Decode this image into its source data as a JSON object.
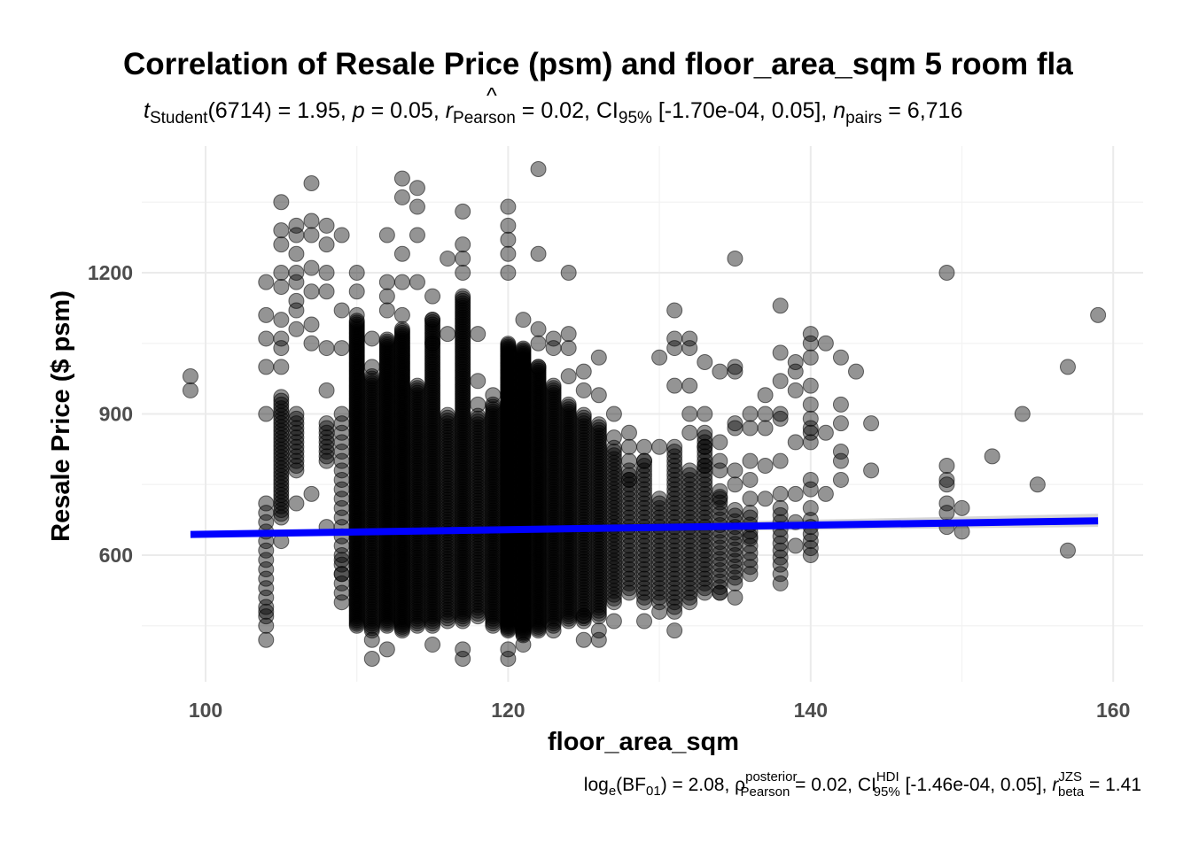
{
  "chart_data": {
    "type": "scatter",
    "title": "Correlation of Resale Price (psm) and floor_area_sqm 5 room fla",
    "subtitle": {
      "t_symbol": "t",
      "t_sub": "Student",
      "df": "(6714)",
      "t_value": " = 1.95, ",
      "p_symbol": "p",
      "p_value": " = 0.05, ",
      "r_symbol": "r",
      "r_hat": "^",
      "r_sub": "Pearson",
      "r_value": " = 0.02, CI",
      "ci_sub": "95%",
      "ci_value": " [-1.70e-04, 0.05], ",
      "n_symbol": "n",
      "n_sub": "pairs",
      "n_value": " = 6,716"
    },
    "caption": {
      "log": "log",
      "log_sub": "e",
      "bf": "(BF",
      "bf_sub": "01",
      "bf_value": ") = 2.08, ",
      "rho": "ρ",
      "rho_hat": "^",
      "rho_sup": "posterior",
      "rho_sub": "Pearson",
      "rho_value": " = 0.02, CI",
      "ci_sup": "HDI",
      "ci_sub": "95%",
      "ci_value": " [-1.46e-04, 0.05], ",
      "r_symbol": "r",
      "r_sup": "JZS",
      "r_sub": "beta",
      "r_value": " = 1.41"
    },
    "xlabel": "floor_area_sqm",
    "ylabel": "Resale Price ($ psm)",
    "xlim": [
      96,
      162
    ],
    "ylim": [
      370,
      1440
    ],
    "x_ticks": [
      100,
      120,
      140,
      160
    ],
    "x_tick_labels": [
      "100",
      "120",
      "140",
      "160"
    ],
    "x_minor": [
      110,
      130,
      150
    ],
    "y_ticks": [
      600,
      900,
      1200
    ],
    "y_tick_labels": [
      "600",
      "900",
      "1200"
    ],
    "y_minor": [
      450,
      750,
      1050,
      1350
    ],
    "grid": true,
    "legend": "none",
    "point_color": "#000000",
    "point_alpha": 0.42,
    "n_points": 6716,
    "fit_line": {
      "color": "#0000ff",
      "ci_band_color": "#d3d3d3",
      "x": [
        99,
        159
      ],
      "y": [
        644,
        673
      ],
      "ci_low_end": [
        641,
        660
      ],
      "ci_high_end": [
        648,
        688
      ]
    },
    "dense_columns": [
      {
        "x": 104,
        "ymin": 470,
        "ymax": 720,
        "step": 20
      },
      {
        "x": 105,
        "ymin": 680,
        "ymax": 940,
        "step": 8
      },
      {
        "x": 106,
        "ymin": 780,
        "ymax": 900,
        "step": 10
      },
      {
        "x": 108,
        "ymin": 800,
        "ymax": 880,
        "step": 10
      },
      {
        "x": 109,
        "ymin": 500,
        "ymax": 900,
        "step": 20
      },
      {
        "x": 110,
        "ymin": 450,
        "ymax": 1100,
        "step": 4
      },
      {
        "x": 111,
        "ymin": 440,
        "ymax": 980,
        "step": 5
      },
      {
        "x": 112,
        "ymin": 450,
        "ymax": 1060,
        "step": 4
      },
      {
        "x": 113,
        "ymin": 440,
        "ymax": 1080,
        "step": 4
      },
      {
        "x": 114,
        "ymin": 450,
        "ymax": 960,
        "step": 5
      },
      {
        "x": 115,
        "ymin": 450,
        "ymax": 1100,
        "step": 5
      },
      {
        "x": 116,
        "ymin": 460,
        "ymax": 900,
        "step": 6
      },
      {
        "x": 117,
        "ymin": 460,
        "ymax": 1150,
        "step": 5
      },
      {
        "x": 118,
        "ymin": 470,
        "ymax": 900,
        "step": 6
      },
      {
        "x": 119,
        "ymin": 450,
        "ymax": 920,
        "step": 5
      },
      {
        "x": 120,
        "ymin": 440,
        "ymax": 1050,
        "step": 3
      },
      {
        "x": 121,
        "ymin": 430,
        "ymax": 1040,
        "step": 3
      },
      {
        "x": 122,
        "ymin": 440,
        "ymax": 1000,
        "step": 4
      },
      {
        "x": 123,
        "ymin": 450,
        "ymax": 960,
        "step": 5
      },
      {
        "x": 124,
        "ymin": 460,
        "ymax": 920,
        "step": 5
      },
      {
        "x": 125,
        "ymin": 460,
        "ymax": 900,
        "step": 6
      },
      {
        "x": 126,
        "ymin": 470,
        "ymax": 880,
        "step": 6
      },
      {
        "x": 127,
        "ymin": 500,
        "ymax": 830,
        "step": 8
      },
      {
        "x": 128,
        "ymin": 520,
        "ymax": 780,
        "step": 10
      },
      {
        "x": 129,
        "ymin": 500,
        "ymax": 800,
        "step": 10
      },
      {
        "x": 130,
        "ymin": 500,
        "ymax": 720,
        "step": 10
      },
      {
        "x": 131,
        "ymin": 480,
        "ymax": 820,
        "step": 10
      },
      {
        "x": 132,
        "ymin": 500,
        "ymax": 780,
        "step": 10
      },
      {
        "x": 133,
        "ymin": 520,
        "ymax": 860,
        "step": 10
      },
      {
        "x": 134,
        "ymin": 520,
        "ymax": 740,
        "step": 12
      },
      {
        "x": 135,
        "ymin": 540,
        "ymax": 700,
        "step": 12
      },
      {
        "x": 136,
        "ymin": 560,
        "ymax": 680,
        "step": 15
      },
      {
        "x": 138,
        "ymin": 580,
        "ymax": 700,
        "step": 15
      },
      {
        "x": 140,
        "ymin": 600,
        "ymax": 680,
        "step": 15
      }
    ],
    "points": [
      [
        99,
        980
      ],
      [
        99,
        950
      ],
      [
        104,
        1180
      ],
      [
        104,
        1110
      ],
      [
        104,
        1060
      ],
      [
        104,
        1000
      ],
      [
        104,
        900
      ],
      [
        104,
        450
      ],
      [
        104,
        420
      ],
      [
        104,
        480
      ],
      [
        105,
        1350
      ],
      [
        105,
        1290
      ],
      [
        105,
        1260
      ],
      [
        105,
        1200
      ],
      [
        105,
        1170
      ],
      [
        105,
        1100
      ],
      [
        105,
        1060
      ],
      [
        105,
        1040
      ],
      [
        105,
        1000
      ],
      [
        105,
        630
      ],
      [
        106,
        1300
      ],
      [
        106,
        1280
      ],
      [
        106,
        1240
      ],
      [
        106,
        1200
      ],
      [
        106,
        1180
      ],
      [
        106,
        1140
      ],
      [
        106,
        1120
      ],
      [
        106,
        1080
      ],
      [
        106,
        710
      ],
      [
        107,
        1390
      ],
      [
        107,
        1310
      ],
      [
        107,
        1280
      ],
      [
        107,
        1210
      ],
      [
        107,
        1160
      ],
      [
        107,
        1090
      ],
      [
        107,
        1050
      ],
      [
        107,
        730
      ],
      [
        108,
        1300
      ],
      [
        108,
        1260
      ],
      [
        108,
        1200
      ],
      [
        108,
        1160
      ],
      [
        108,
        1040
      ],
      [
        108,
        950
      ],
      [
        108,
        660
      ],
      [
        109,
        1280
      ],
      [
        109,
        1120
      ],
      [
        109,
        1040
      ],
      [
        109,
        590
      ],
      [
        109,
        560
      ],
      [
        110,
        1200
      ],
      [
        110,
        1160
      ],
      [
        110,
        1110
      ],
      [
        111,
        1000
      ],
      [
        111,
        1060
      ],
      [
        111,
        420
      ],
      [
        111,
        380
      ],
      [
        112,
        1280
      ],
      [
        112,
        1180
      ],
      [
        112,
        1150
      ],
      [
        112,
        1120
      ],
      [
        112,
        400
      ],
      [
        113,
        1400
      ],
      [
        113,
        1360
      ],
      [
        113,
        1240
      ],
      [
        113,
        1180
      ],
      [
        113,
        1110
      ],
      [
        114,
        1380
      ],
      [
        114,
        1340
      ],
      [
        114,
        1280
      ],
      [
        114,
        1180
      ],
      [
        115,
        1150
      ],
      [
        115,
        1100
      ],
      [
        115,
        1050
      ],
      [
        115,
        410
      ],
      [
        116,
        1230
      ],
      [
        116,
        1070
      ],
      [
        117,
        1330
      ],
      [
        117,
        1260
      ],
      [
        117,
        1230
      ],
      [
        117,
        1200
      ],
      [
        117,
        400
      ],
      [
        117,
        380
      ],
      [
        118,
        1070
      ],
      [
        118,
        970
      ],
      [
        118,
        920
      ],
      [
        119,
        940
      ],
      [
        120,
        1340
      ],
      [
        120,
        1300
      ],
      [
        120,
        1270
      ],
      [
        120,
        1240
      ],
      [
        120,
        1200
      ],
      [
        120,
        400
      ],
      [
        120,
        380
      ],
      [
        121,
        1100
      ],
      [
        121,
        410
      ],
      [
        122,
        1420
      ],
      [
        122,
        1240
      ],
      [
        122,
        1080
      ],
      [
        122,
        1050
      ],
      [
        122,
        1000
      ],
      [
        123,
        1060
      ],
      [
        123,
        1040
      ],
      [
        123,
        440
      ],
      [
        124,
        1200
      ],
      [
        124,
        1070
      ],
      [
        124,
        1040
      ],
      [
        124,
        980
      ],
      [
        125,
        990
      ],
      [
        125,
        950
      ],
      [
        125,
        470
      ],
      [
        125,
        420
      ],
      [
        126,
        1020
      ],
      [
        126,
        940
      ],
      [
        126,
        420
      ],
      [
        126,
        440
      ],
      [
        127,
        900
      ],
      [
        127,
        850
      ],
      [
        127,
        460
      ],
      [
        128,
        860
      ],
      [
        128,
        830
      ],
      [
        128,
        800
      ],
      [
        128,
        760
      ],
      [
        129,
        830
      ],
      [
        129,
        800
      ],
      [
        129,
        460
      ],
      [
        130,
        1020
      ],
      [
        130,
        830
      ],
      [
        130,
        480
      ],
      [
        131,
        1120
      ],
      [
        131,
        1060
      ],
      [
        131,
        1040
      ],
      [
        131,
        960
      ],
      [
        131,
        830
      ],
      [
        131,
        440
      ],
      [
        132,
        1060
      ],
      [
        132,
        1040
      ],
      [
        132,
        960
      ],
      [
        132,
        900
      ],
      [
        132,
        860
      ],
      [
        133,
        1010
      ],
      [
        133,
        900
      ],
      [
        133,
        830
      ],
      [
        133,
        790
      ],
      [
        134,
        990
      ],
      [
        134,
        840
      ],
      [
        134,
        800
      ],
      [
        134,
        780
      ],
      [
        134,
        720
      ],
      [
        134,
        520
      ],
      [
        135,
        1230
      ],
      [
        135,
        1000
      ],
      [
        135,
        990
      ],
      [
        135,
        880
      ],
      [
        135,
        870
      ],
      [
        135,
        780
      ],
      [
        135,
        750
      ],
      [
        135,
        510
      ],
      [
        136,
        900
      ],
      [
        136,
        870
      ],
      [
        136,
        800
      ],
      [
        136,
        760
      ],
      [
        136,
        720
      ],
      [
        136,
        690
      ],
      [
        136,
        640
      ],
      [
        137,
        940
      ],
      [
        137,
        900
      ],
      [
        137,
        870
      ],
      [
        137,
        790
      ],
      [
        137,
        720
      ],
      [
        138,
        1130
      ],
      [
        138,
        1030
      ],
      [
        138,
        970
      ],
      [
        138,
        900
      ],
      [
        138,
        890
      ],
      [
        138,
        800
      ],
      [
        138,
        730
      ],
      [
        138,
        560
      ],
      [
        138,
        540
      ],
      [
        139,
        1010
      ],
      [
        139,
        990
      ],
      [
        139,
        950
      ],
      [
        139,
        840
      ],
      [
        139,
        730
      ],
      [
        139,
        670
      ],
      [
        139,
        620
      ],
      [
        140,
        1070
      ],
      [
        140,
        1050
      ],
      [
        140,
        1020
      ],
      [
        140,
        960
      ],
      [
        140,
        920
      ],
      [
        140,
        890
      ],
      [
        140,
        870
      ],
      [
        140,
        860
      ],
      [
        140,
        840
      ],
      [
        140,
        760
      ],
      [
        140,
        740
      ],
      [
        140,
        700
      ],
      [
        141,
        1050
      ],
      [
        141,
        860
      ],
      [
        141,
        730
      ],
      [
        142,
        1020
      ],
      [
        142,
        920
      ],
      [
        142,
        880
      ],
      [
        142,
        820
      ],
      [
        142,
        800
      ],
      [
        142,
        760
      ],
      [
        143,
        990
      ],
      [
        144,
        880
      ],
      [
        144,
        780
      ],
      [
        149,
        1200
      ],
      [
        149,
        790
      ],
      [
        149,
        760
      ],
      [
        149,
        750
      ],
      [
        149,
        710
      ],
      [
        149,
        690
      ],
      [
        149,
        660
      ],
      [
        150,
        700
      ],
      [
        150,
        650
      ],
      [
        152,
        810
      ],
      [
        154,
        900
      ],
      [
        155,
        750
      ],
      [
        157,
        1000
      ],
      [
        157,
        610
      ],
      [
        159,
        1110
      ]
    ]
  }
}
